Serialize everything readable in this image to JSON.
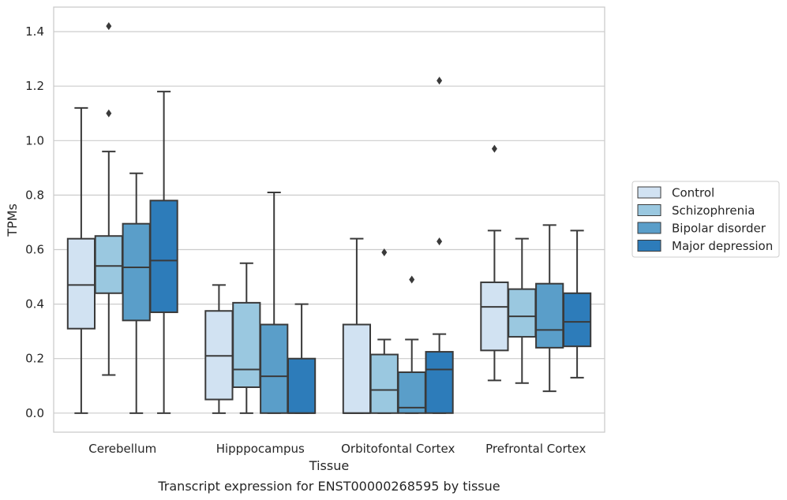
{
  "chart_data": {
    "type": "box",
    "xlabel": "Tissue",
    "ylabel": "TPMs",
    "caption": "Transcript expression for ENST00000268595 by tissue",
    "ylim": [
      -0.07,
      1.49
    ],
    "yticks": [
      "0.0",
      "0.2",
      "0.4",
      "0.6",
      "0.8",
      "1.0",
      "1.2",
      "1.4"
    ],
    "ytick_values": [
      0,
      0.2,
      0.4,
      0.6,
      0.8,
      1.0,
      1.2,
      1.4
    ],
    "grid": "horizontal",
    "legend_placement": "right",
    "categories": [
      "Cerebellum",
      "Hipppocampus",
      "Orbitofontal Cortex",
      "Prefrontal Cortex"
    ],
    "series": [
      {
        "name": "Control",
        "color": "#d1e2f2",
        "boxes": [
          {
            "whislo": 0.0,
            "q1": 0.31,
            "med": 0.47,
            "q3": 0.64,
            "whishi": 1.12,
            "fliers": []
          },
          {
            "whislo": 0.0,
            "q1": 0.05,
            "med": 0.21,
            "q3": 0.375,
            "whishi": 0.47,
            "fliers": []
          },
          {
            "whislo": 0.0,
            "q1": 0.0,
            "med": 0.0,
            "q3": 0.325,
            "whishi": 0.64,
            "fliers": []
          },
          {
            "whislo": 0.12,
            "q1": 0.23,
            "med": 0.39,
            "q3": 0.48,
            "whishi": 0.67,
            "fliers": [
              0.97
            ]
          }
        ]
      },
      {
        "name": "Schizophrenia",
        "color": "#9ac8e0",
        "boxes": [
          {
            "whislo": 0.14,
            "q1": 0.44,
            "med": 0.54,
            "q3": 0.65,
            "whishi": 0.96,
            "fliers": [
              1.1,
              1.42
            ]
          },
          {
            "whislo": 0.0,
            "q1": 0.095,
            "med": 0.16,
            "q3": 0.405,
            "whishi": 0.55,
            "fliers": []
          },
          {
            "whislo": 0.0,
            "q1": 0.0,
            "med": 0.085,
            "q3": 0.215,
            "whishi": 0.27,
            "fliers": [
              0.59
            ]
          },
          {
            "whislo": 0.11,
            "q1": 0.28,
            "med": 0.355,
            "q3": 0.455,
            "whishi": 0.64,
            "fliers": []
          }
        ]
      },
      {
        "name": "Bipolar disorder",
        "color": "#5a9ec9",
        "boxes": [
          {
            "whislo": 0.0,
            "q1": 0.34,
            "med": 0.535,
            "q3": 0.695,
            "whishi": 0.88,
            "fliers": []
          },
          {
            "whislo": 0.0,
            "q1": 0.0,
            "med": 0.135,
            "q3": 0.325,
            "whishi": 0.81,
            "fliers": []
          },
          {
            "whislo": 0.0,
            "q1": 0.0,
            "med": 0.02,
            "q3": 0.15,
            "whishi": 0.27,
            "fliers": [
              0.49
            ]
          },
          {
            "whislo": 0.08,
            "q1": 0.24,
            "med": 0.305,
            "q3": 0.475,
            "whishi": 0.69,
            "fliers": []
          }
        ]
      },
      {
        "name": "Major depression",
        "color": "#2d7cba",
        "boxes": [
          {
            "whislo": 0.0,
            "q1": 0.37,
            "med": 0.56,
            "q3": 0.78,
            "whishi": 1.18,
            "fliers": []
          },
          {
            "whislo": 0.0,
            "q1": 0.0,
            "med": 0.0,
            "q3": 0.2,
            "whishi": 0.4,
            "fliers": []
          },
          {
            "whislo": 0.0,
            "q1": 0.0,
            "med": 0.16,
            "q3": 0.225,
            "whishi": 0.29,
            "fliers": [
              0.63,
              1.22
            ]
          },
          {
            "whislo": 0.13,
            "q1": 0.245,
            "med": 0.335,
            "q3": 0.44,
            "whishi": 0.67,
            "fliers": []
          }
        ]
      }
    ]
  },
  "colors": {
    "grid": "#cccccc",
    "frame": "#cccccc",
    "box_edge": "#3a3a3a"
  }
}
